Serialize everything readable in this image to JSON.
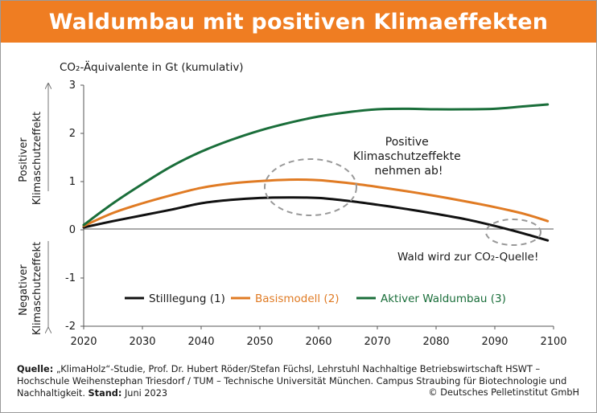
{
  "header": {
    "title": "Waldumbau mit positiven Klimaeffekten"
  },
  "colors": {
    "header_bg": "#ef7d22",
    "series1": "#111111",
    "series2": "#e07b24",
    "series3": "#1a6e3a"
  },
  "chart_data": {
    "type": "line",
    "ylabel": "CO₂-Äquivalente in Gt (kumulativ)",
    "y_axis_labels": {
      "positive": [
        "Positiver",
        "Klimaschutzeffekt"
      ],
      "negative": [
        "Negativer",
        "Klimaschutzeffekt"
      ]
    },
    "xlim": [
      2020,
      2100
    ],
    "ylim": [
      -2,
      3
    ],
    "x_ticks": [
      "2020",
      "2030",
      "2040",
      "2050",
      "2060",
      "2070",
      "2080",
      "2090",
      "2100"
    ],
    "y_ticks": [
      "3",
      "2",
      "1",
      "0",
      "-1",
      "-2"
    ],
    "legend_position": "bottom",
    "grid": false,
    "series": [
      {
        "name": "Stilllegung (1)",
        "x": [
          2020,
          2025,
          2030,
          2035,
          2040,
          2045,
          2050,
          2055,
          2060,
          2065,
          2070,
          2075,
          2080,
          2085,
          2090,
          2095,
          2099
        ],
        "values": [
          0.05,
          0.18,
          0.3,
          0.42,
          0.55,
          0.62,
          0.66,
          0.67,
          0.66,
          0.6,
          0.52,
          0.43,
          0.33,
          0.22,
          0.08,
          -0.08,
          -0.22
        ]
      },
      {
        "name": "Basismodell (2)",
        "x": [
          2020,
          2025,
          2030,
          2035,
          2040,
          2045,
          2050,
          2055,
          2060,
          2065,
          2070,
          2075,
          2080,
          2085,
          2090,
          2095,
          2099
        ],
        "values": [
          0.08,
          0.35,
          0.55,
          0.72,
          0.87,
          0.96,
          1.01,
          1.04,
          1.03,
          0.97,
          0.89,
          0.8,
          0.7,
          0.59,
          0.47,
          0.33,
          0.18
        ]
      },
      {
        "name": "Aktiver Waldumbau (3)",
        "x": [
          2020,
          2025,
          2030,
          2035,
          2040,
          2045,
          2050,
          2055,
          2060,
          2065,
          2070,
          2075,
          2080,
          2085,
          2090,
          2095,
          2099
        ],
        "values": [
          0.1,
          0.55,
          0.95,
          1.32,
          1.62,
          1.86,
          2.06,
          2.22,
          2.35,
          2.44,
          2.5,
          2.51,
          2.5,
          2.5,
          2.51,
          2.56,
          2.6
        ]
      }
    ],
    "annotations": [
      {
        "lines": [
          "Positive",
          "Klimaschutzeffekte",
          "nehmen ab!"
        ]
      },
      {
        "lines": [
          "Wald wird zur CO₂-Quelle!"
        ]
      }
    ]
  },
  "source": {
    "label": "Quelle:",
    "text": " „KlimaHolz“-Studie, Prof. Dr. Hubert Röder/Stefan Füchsl, Lehrstuhl Nachhaltige Betriebswirtschaft HSWT – Hochschule Weihenstephan Triesdorf / TUM – Technische Universität München. Campus Straubing für Biotechnologie und Nachhaltigkeit.",
    "date_label": "Stand:",
    "date": " Juni 2023"
  },
  "copyright": "© Deutsches Pelletinstitut GmbH"
}
